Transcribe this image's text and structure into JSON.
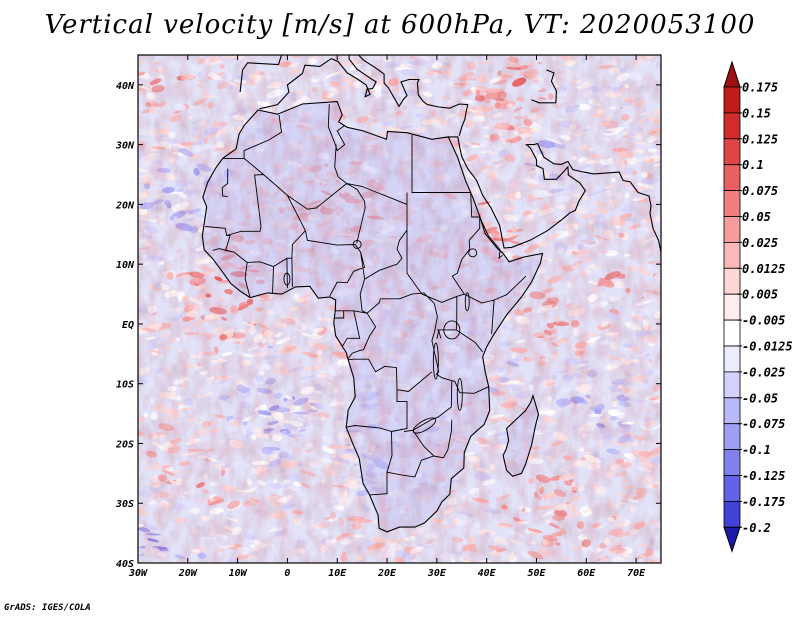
{
  "title": "Vertical velocity [m/s] at 600hPa, VT: 2020053100",
  "credit": "GrADS: IGES/COLA",
  "map": {
    "lon_range": [
      -30,
      75
    ],
    "lat_range": [
      -40,
      45
    ],
    "lat_ticks": [
      {
        "value": 40,
        "label": "40N"
      },
      {
        "value": 30,
        "label": "30N"
      },
      {
        "value": 20,
        "label": "20N"
      },
      {
        "value": 10,
        "label": "10N"
      },
      {
        "value": 0,
        "label": "EQ"
      },
      {
        "value": -10,
        "label": "10S"
      },
      {
        "value": -20,
        "label": "20S"
      },
      {
        "value": -30,
        "label": "30S"
      },
      {
        "value": -40,
        "label": "40S"
      }
    ],
    "lon_ticks": [
      {
        "value": -30,
        "label": "30W"
      },
      {
        "value": -20,
        "label": "20W"
      },
      {
        "value": -10,
        "label": "10W"
      },
      {
        "value": 0,
        "label": "0"
      },
      {
        "value": 10,
        "label": "10E"
      },
      {
        "value": 20,
        "label": "20E"
      },
      {
        "value": 30,
        "label": "30E"
      },
      {
        "value": 40,
        "label": "40E"
      },
      {
        "value": 50,
        "label": "50E"
      },
      {
        "value": 60,
        "label": "60E"
      },
      {
        "value": 70,
        "label": "70E"
      }
    ]
  },
  "colorbar": {
    "levels": [
      {
        "label": "0.175",
        "color": "#c01c1c"
      },
      {
        "label": "0.15",
        "color": "#d22b2b"
      },
      {
        "label": "0.125",
        "color": "#e04545"
      },
      {
        "label": "0.1",
        "color": "#ea6060"
      },
      {
        "label": "0.075",
        "color": "#f07e7e"
      },
      {
        "label": "0.05",
        "color": "#f69c9c"
      },
      {
        "label": "0.025",
        "color": "#fab9b9"
      },
      {
        "label": "0.0125",
        "color": "#fdd6d6"
      },
      {
        "label": "0.005",
        "color": "#ffeded"
      },
      {
        "label": "-0.005",
        "color": "#ffffff"
      },
      {
        "label": "-0.0125",
        "color": "#ececff"
      },
      {
        "label": "-0.025",
        "color": "#d2d2fd"
      },
      {
        "label": "-0.05",
        "color": "#b8b8fa"
      },
      {
        "label": "-0.075",
        "color": "#9e9ef5"
      },
      {
        "label": "-0.1",
        "color": "#8181ee"
      },
      {
        "label": "-0.125",
        "color": "#6262e6"
      },
      {
        "label": "-0.175",
        "color": "#4242d8"
      },
      {
        "label": "-0.2",
        "color": "#2a2ac8"
      }
    ],
    "top_arrow_color": "#a01010",
    "bottom_arrow_color": "#1a1aa8"
  },
  "field_colors": {
    "land_base": "#c8c8f4",
    "ocean_base": "#e2e2f8"
  }
}
